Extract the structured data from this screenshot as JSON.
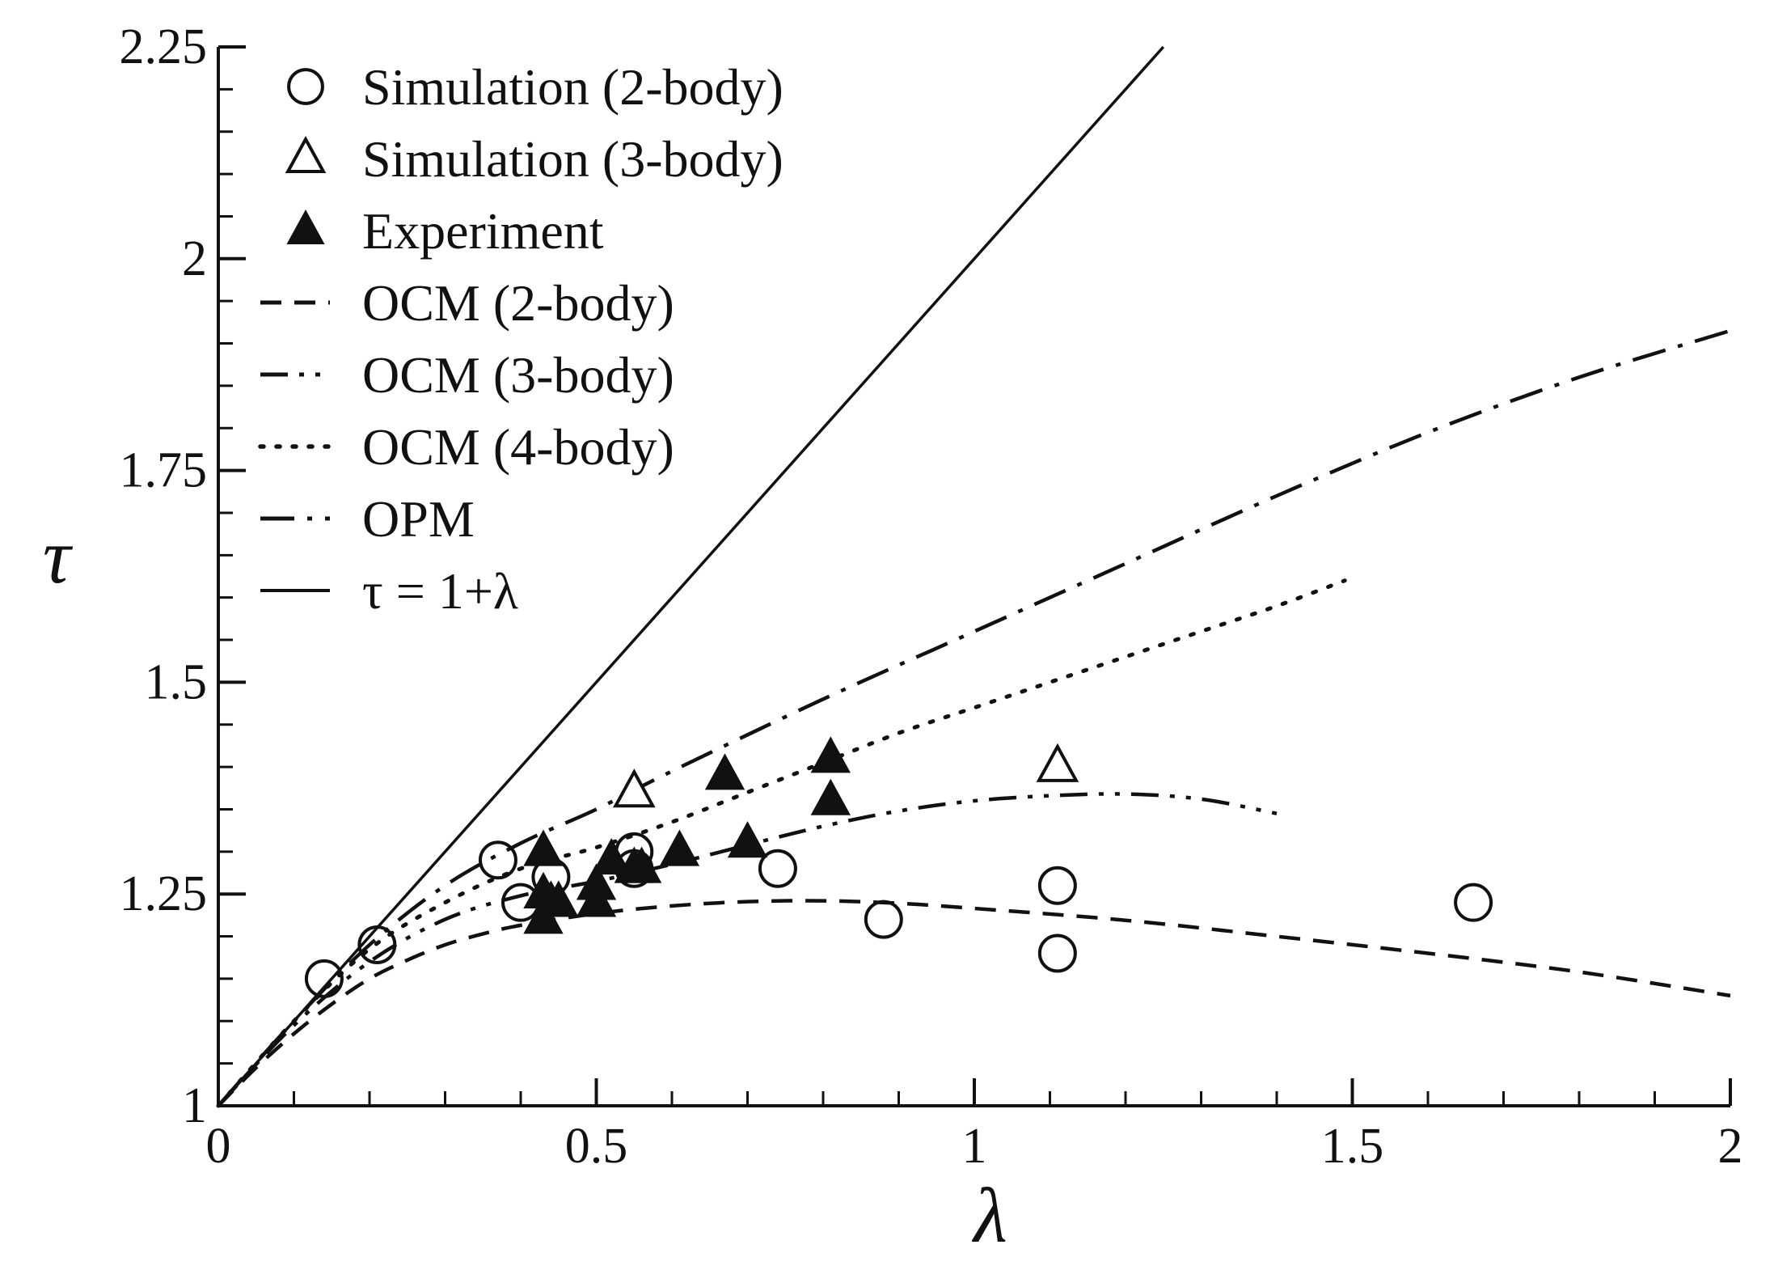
{
  "chart_data": {
    "type": "scatter",
    "title": "",
    "xlabel": "λ",
    "ylabel": "τ",
    "xlim": [
      0,
      2
    ],
    "ylim": [
      1,
      2.25
    ],
    "x_ticks": [
      {
        "value": 0,
        "label": "0"
      },
      {
        "value": 0.5,
        "label": "0.5"
      },
      {
        "value": 1,
        "label": "1"
      },
      {
        "value": 1.5,
        "label": "1.5"
      },
      {
        "value": 2,
        "label": "2"
      }
    ],
    "y_ticks": [
      {
        "value": 1,
        "label": "1"
      },
      {
        "value": 1.25,
        "label": "1.25"
      },
      {
        "value": 1.5,
        "label": "1.5"
      },
      {
        "value": 1.75,
        "label": "1.75"
      },
      {
        "value": 2,
        "label": "2"
      },
      {
        "value": 2.25,
        "label": "2.25"
      }
    ],
    "x_minor_step": 0.1,
    "y_minor_step": 0.05,
    "grid": false,
    "legend_position": "top-left",
    "series": [
      {
        "name": "Simulation (2-body)",
        "kind": "marker",
        "marker": "circle-open",
        "points": [
          [
            0.14,
            1.15
          ],
          [
            0.21,
            1.19
          ],
          [
            0.37,
            1.29
          ],
          [
            0.4,
            1.24
          ],
          [
            0.44,
            1.27
          ],
          [
            0.55,
            1.3
          ],
          [
            0.55,
            1.28
          ],
          [
            0.74,
            1.28
          ],
          [
            0.88,
            1.22
          ],
          [
            1.11,
            1.26
          ],
          [
            1.11,
            1.18
          ],
          [
            1.66,
            1.24
          ]
        ]
      },
      {
        "name": "Simulation (3-body)",
        "kind": "marker",
        "marker": "triangle-open",
        "points": [
          [
            0.55,
            1.37
          ],
          [
            1.11,
            1.4
          ]
        ]
      },
      {
        "name": "Experiment",
        "kind": "marker",
        "marker": "triangle-filled",
        "points": [
          [
            0.43,
            1.3
          ],
          [
            0.43,
            1.25
          ],
          [
            0.43,
            1.22
          ],
          [
            0.44,
            1.24
          ],
          [
            0.45,
            1.24
          ],
          [
            0.5,
            1.24
          ],
          [
            0.5,
            1.26
          ],
          [
            0.52,
            1.29
          ],
          [
            0.55,
            1.28
          ],
          [
            0.56,
            1.28
          ],
          [
            0.61,
            1.3
          ],
          [
            0.67,
            1.39
          ],
          [
            0.7,
            1.31
          ],
          [
            0.81,
            1.41
          ],
          [
            0.81,
            1.36
          ]
        ]
      },
      {
        "name": "OCM (2-body)",
        "kind": "line",
        "style": "dashed",
        "points": [
          [
            0,
            1.0
          ],
          [
            0.05,
            1.045
          ],
          [
            0.1,
            1.085
          ],
          [
            0.15,
            1.12
          ],
          [
            0.2,
            1.15
          ],
          [
            0.25,
            1.172
          ],
          [
            0.3,
            1.19
          ],
          [
            0.35,
            1.203
          ],
          [
            0.4,
            1.213
          ],
          [
            0.5,
            1.227
          ],
          [
            0.6,
            1.236
          ],
          [
            0.7,
            1.241
          ],
          [
            0.8,
            1.242
          ],
          [
            0.9,
            1.239
          ],
          [
            1.0,
            1.233
          ],
          [
            1.2,
            1.219
          ],
          [
            1.4,
            1.2
          ],
          [
            1.6,
            1.18
          ],
          [
            1.8,
            1.158
          ],
          [
            2.0,
            1.13
          ]
        ]
      },
      {
        "name": "OCM (3-body)",
        "kind": "line",
        "style": "dash-dot-dot",
        "points": [
          [
            0,
            1.0
          ],
          [
            0.1,
            1.095
          ],
          [
            0.2,
            1.17
          ],
          [
            0.3,
            1.22
          ],
          [
            0.4,
            1.248
          ],
          [
            0.5,
            1.265
          ],
          [
            0.6,
            1.285
          ],
          [
            0.7,
            1.308
          ],
          [
            0.8,
            1.33
          ],
          [
            0.9,
            1.348
          ],
          [
            1.0,
            1.36
          ],
          [
            1.1,
            1.366
          ],
          [
            1.2,
            1.368
          ],
          [
            1.3,
            1.362
          ],
          [
            1.4,
            1.345
          ]
        ]
      },
      {
        "name": "OCM (4-body)",
        "kind": "line",
        "style": "dotted",
        "points": [
          [
            0,
            1.0
          ],
          [
            0.1,
            1.1
          ],
          [
            0.2,
            1.185
          ],
          [
            0.3,
            1.24
          ],
          [
            0.4,
            1.28
          ],
          [
            0.5,
            1.305
          ],
          [
            0.6,
            1.335
          ],
          [
            0.7,
            1.37
          ],
          [
            0.8,
            1.405
          ],
          [
            0.9,
            1.44
          ],
          [
            1.0,
            1.47
          ],
          [
            1.1,
            1.5
          ],
          [
            1.2,
            1.53
          ],
          [
            1.3,
            1.56
          ],
          [
            1.4,
            1.59
          ],
          [
            1.49,
            1.62
          ]
        ]
      },
      {
        "name": "OPM",
        "kind": "line",
        "style": "dash-dot",
        "points": [
          [
            0,
            1.0
          ],
          [
            0.1,
            1.1
          ],
          [
            0.2,
            1.19
          ],
          [
            0.3,
            1.26
          ],
          [
            0.4,
            1.31
          ],
          [
            0.5,
            1.35
          ],
          [
            0.6,
            1.395
          ],
          [
            0.8,
            1.48
          ],
          [
            1.0,
            1.56
          ],
          [
            1.2,
            1.64
          ],
          [
            1.4,
            1.72
          ],
          [
            1.6,
            1.795
          ],
          [
            1.8,
            1.86
          ],
          [
            2.0,
            1.915
          ]
        ]
      },
      {
        "name": "τ = 1+λ",
        "kind": "line",
        "style": "solid",
        "points": [
          [
            0,
            1.0
          ],
          [
            1.25,
            2.25
          ]
        ]
      }
    ]
  },
  "legend": [
    {
      "label": "Simulation (2-body)",
      "symbol": "circle-open"
    },
    {
      "label": "Simulation (3-body)",
      "symbol": "triangle-open"
    },
    {
      "label": "Experiment",
      "symbol": "triangle-filled"
    },
    {
      "label": "OCM (2-body)",
      "symbol": "dashed"
    },
    {
      "label": "OCM (3-body)",
      "symbol": "dash-dot-dot"
    },
    {
      "label": "OCM (4-body)",
      "symbol": "dotted"
    },
    {
      "label": "OPM",
      "symbol": "dash-dot"
    },
    {
      "label": "τ = 1+λ",
      "symbol": "solid"
    }
  ]
}
